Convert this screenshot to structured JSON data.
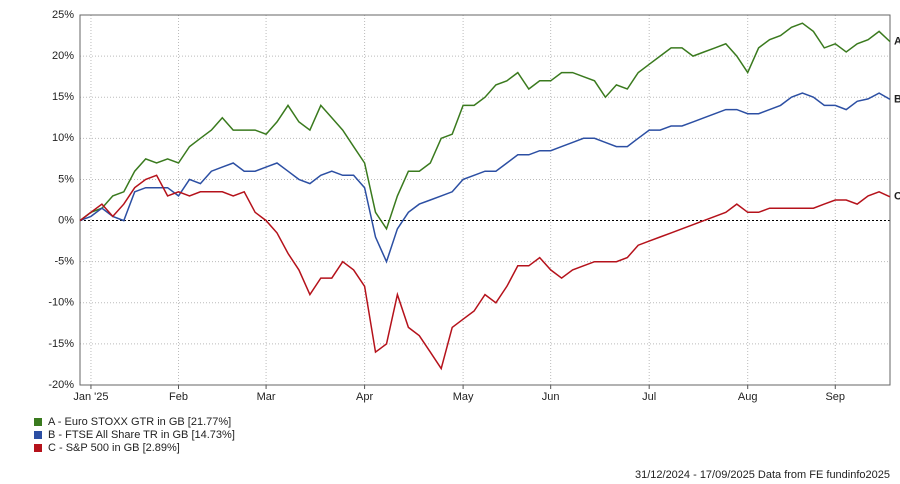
{
  "chart_data": {
    "type": "line",
    "categories": [
      null,
      "Jan '25",
      null,
      null,
      null,
      null,
      null,
      null,
      null,
      "Feb",
      null,
      null,
      null,
      null,
      null,
      null,
      null,
      "Mar",
      null,
      null,
      null,
      null,
      null,
      null,
      null,
      null,
      "Apr",
      null,
      null,
      null,
      null,
      null,
      null,
      null,
      null,
      "May",
      null,
      null,
      null,
      null,
      null,
      null,
      null,
      "Jun",
      null,
      null,
      null,
      null,
      null,
      null,
      null,
      null,
      "Jul",
      null,
      null,
      null,
      null,
      null,
      null,
      null,
      null,
      "Aug",
      null,
      null,
      null,
      null,
      null,
      null,
      null,
      "Sep",
      null,
      null,
      null,
      null,
      null
    ],
    "series": [
      {
        "name": "A - Euro STOXX GTR in GB [21.77%]",
        "label": "A",
        "color": "#3a7a1e",
        "values": [
          0,
          1,
          1.5,
          3,
          3.5,
          6,
          7.5,
          7,
          7.5,
          7,
          9,
          10,
          11,
          12.5,
          11,
          11,
          11,
          10.5,
          12,
          14,
          12,
          11,
          14,
          12.5,
          11,
          9,
          7,
          1,
          -1,
          3,
          6,
          6,
          7,
          10,
          10.5,
          14,
          14,
          15,
          16.5,
          17,
          18,
          16,
          17,
          17,
          18,
          18,
          17.5,
          17,
          15,
          16.5,
          16,
          18,
          19,
          20,
          21,
          21,
          20,
          20.5,
          21,
          21.5,
          20,
          18,
          21,
          22,
          22.5,
          23.5,
          24,
          23,
          21,
          21.5,
          20.5,
          21.5,
          22,
          23,
          21.77
        ]
      },
      {
        "name": "B - FTSE All Share TR in GB [14.73%]",
        "label": "B",
        "color": "#2c4fa3",
        "values": [
          0,
          0.5,
          1.5,
          0.5,
          0,
          3.5,
          4,
          4,
          4,
          3,
          5,
          4.5,
          6,
          6.5,
          7,
          6,
          6,
          6.5,
          7,
          6,
          5,
          4.5,
          5.5,
          6,
          5.5,
          5.5,
          4,
          -2,
          -5,
          -1,
          1,
          2,
          2.5,
          3,
          3.5,
          5,
          5.5,
          6,
          6,
          7,
          8,
          8,
          8.5,
          8.5,
          9,
          9.5,
          10,
          10,
          9.5,
          9,
          9,
          10,
          11,
          11,
          11.5,
          11.5,
          12,
          12.5,
          13,
          13.5,
          13.5,
          13,
          13,
          13.5,
          14,
          15,
          15.5,
          15,
          14,
          14,
          13.5,
          14.5,
          14.8,
          15.5,
          14.73
        ]
      },
      {
        "name": "C - S&P 500 in GB [2.89%]",
        "label": "C",
        "color": "#b5121b",
        "values": [
          0,
          1,
          2,
          0.5,
          2,
          4,
          5,
          5.5,
          3,
          3.5,
          3,
          3.5,
          3.5,
          3.5,
          3,
          3.5,
          1,
          0,
          -1.5,
          -4,
          -6,
          -9,
          -7,
          -7,
          -5,
          -6,
          -8,
          -16,
          -15,
          -9,
          -13,
          -14,
          -16,
          -18,
          -13,
          -12,
          -11,
          -9,
          -10,
          -8,
          -5.5,
          -5.5,
          -4.5,
          -6,
          -7,
          -6,
          -5.5,
          -5,
          -5,
          -5,
          -4.5,
          -3,
          -2.5,
          -2,
          -1.5,
          -1,
          -0.5,
          0,
          0.5,
          1,
          2,
          1,
          1,
          1.5,
          1.5,
          1.5,
          1.5,
          1.5,
          2,
          2.5,
          2.5,
          2,
          3,
          3.5,
          2.89
        ]
      }
    ],
    "ylim": [
      -20,
      25
    ],
    "yticks": [
      {
        "value": -20,
        "label": "-20%"
      },
      {
        "value": -15,
        "label": "-15%"
      },
      {
        "value": -10,
        "label": "-10%"
      },
      {
        "value": -5,
        "label": "-5%"
      },
      {
        "value": 0,
        "label": "0%"
      },
      {
        "value": 5,
        "label": "5%"
      },
      {
        "value": 10,
        "label": "10%"
      },
      {
        "value": 15,
        "label": "15%"
      },
      {
        "value": 20,
        "label": "20%"
      },
      {
        "value": 25,
        "label": "25%"
      }
    ],
    "grid": true,
    "footer": "31/12/2024 - 17/09/2025 Data from FE fundinfo2025"
  }
}
